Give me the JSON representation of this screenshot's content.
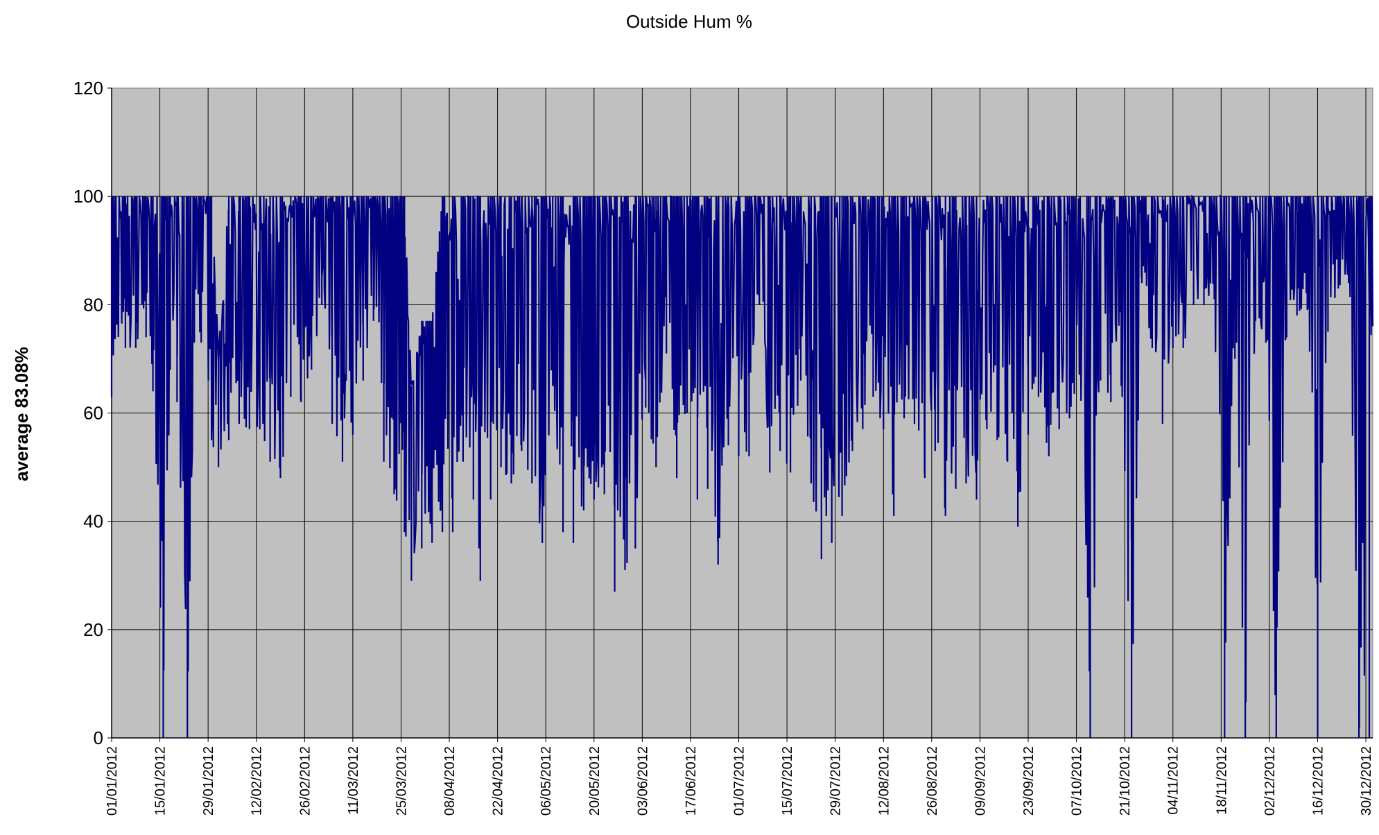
{
  "chart_data": {
    "type": "line",
    "title": "Outside Hum %",
    "xlabel": "",
    "ylabel": "average 83.08%",
    "ylim": [
      0,
      120
    ],
    "yticks": [
      0,
      20,
      40,
      60,
      80,
      100,
      120
    ],
    "x_start": "01/01/2012",
    "x_end": "31/12/2012",
    "x_tick_labels": [
      "01/01/2012",
      "15/01/2012",
      "29/01/2012",
      "12/02/2012",
      "26/02/2012",
      "11/03/2012",
      "25/03/2012",
      "08/04/2012",
      "22/04/2012",
      "06/05/2012",
      "20/05/2012",
      "03/06/2012",
      "17/06/2012",
      "01/07/2012",
      "15/07/2012",
      "29/07/2012",
      "12/08/2012",
      "26/08/2012",
      "09/09/2012",
      "23/09/2012",
      "07/10/2012",
      "21/10/2012",
      "04/11/2012",
      "18/11/2012",
      "02/12/2012",
      "16/12/2012",
      "30/12/2012"
    ],
    "grid": true,
    "legend": "none",
    "colors": {
      "series": "#000080",
      "plot_background": "#c0c0c0",
      "grid": "#000000"
    },
    "series": [
      {
        "x": [
          "01/01/2012",
          "05/01/2012",
          "08/01/2012",
          "11/01/2012",
          "13/01/2012",
          "16/01/2012",
          "18/01/2012",
          "20/01/2012",
          "23/01/2012",
          "25/01/2012",
          "27/01/2012",
          "30/01/2012",
          "01/02/2012",
          "04/02/2012",
          "07/02/2012",
          "10/02/2012",
          "13/02/2012",
          "16/02/2012",
          "19/02/2012",
          "22/02/2012",
          "25/02/2012",
          "28/02/2012",
          "02/03/2012",
          "05/03/2012",
          "08/03/2012",
          "11/03/2012",
          "14/03/2012",
          "17/03/2012",
          "20/03/2012",
          "23/03/2012",
          "26/03/2012",
          "28/03/2012",
          "31/03/2012",
          "03/04/2012",
          "06/04/2012",
          "09/04/2012",
          "12/04/2012",
          "15/04/2012",
          "17/04/2012",
          "20/04/2012",
          "23/04/2012",
          "26/04/2012",
          "29/04/2012",
          "02/05/2012",
          "05/05/2012",
          "08/05/2012",
          "11/05/2012",
          "14/05/2012",
          "17/05/2012",
          "20/05/2012",
          "23/05/2012",
          "26/05/2012",
          "29/05/2012",
          "01/06/2012",
          "04/06/2012",
          "07/06/2012",
          "10/06/2012",
          "13/06/2012",
          "16/06/2012",
          "19/06/2012",
          "22/06/2012",
          "25/06/2012",
          "28/06/2012",
          "01/07/2012",
          "04/07/2012",
          "07/07/2012",
          "10/07/2012",
          "13/07/2012",
          "16/07/2012",
          "19/07/2012",
          "22/07/2012",
          "25/07/2012",
          "28/07/2012",
          "31/07/2012",
          "03/08/2012",
          "06/08/2012",
          "09/08/2012",
          "12/08/2012",
          "15/08/2012",
          "18/08/2012",
          "21/08/2012",
          "24/08/2012",
          "27/08/2012",
          "30/08/2012",
          "02/09/2012",
          "05/09/2012",
          "08/09/2012",
          "11/09/2012",
          "14/09/2012",
          "17/09/2012",
          "20/09/2012",
          "23/09/2012",
          "26/09/2012",
          "29/09/2012",
          "02/10/2012",
          "05/10/2012",
          "08/10/2012",
          "11/10/2012",
          "14/10/2012",
          "17/10/2012",
          "20/10/2012",
          "23/10/2012",
          "26/10/2012",
          "29/10/2012",
          "01/11/2012",
          "04/11/2012",
          "07/11/2012",
          "10/11/2012",
          "13/11/2012",
          "16/11/2012",
          "19/11/2012",
          "22/11/2012",
          "25/11/2012",
          "28/11/2012",
          "01/12/2012",
          "04/12/2012",
          "07/12/2012",
          "10/12/2012",
          "13/12/2012",
          "16/12/2012",
          "19/12/2012",
          "22/12/2012",
          "25/12/2012",
          "28/12/2012",
          "31/12/2012"
        ],
        "min": [
          63,
          72,
          72,
          74,
          64,
          0,
          68,
          62,
          0,
          73,
          73,
          55,
          50,
          55,
          58,
          57,
          57,
          51,
          48,
          63,
          62,
          68,
          80,
          58,
          51,
          56,
          66,
          77,
          51,
          45,
          38,
          29,
          35,
          36,
          38,
          38,
          51,
          44,
          29,
          44,
          50,
          47,
          53,
          47,
          36,
          65,
          38,
          36,
          42,
          44,
          45,
          27,
          31,
          35,
          61,
          50,
          71,
          48,
          60,
          44,
          46,
          32,
          54,
          52,
          52,
          80,
          49,
          53,
          49,
          66,
          47,
          33,
          36,
          41,
          53,
          57,
          63,
          57,
          41,
          59,
          58,
          48,
          53,
          41,
          46,
          47,
          44,
          57,
          55,
          51,
          39,
          56,
          63,
          52,
          57,
          59,
          67,
          0,
          66,
          62,
          65,
          0,
          84,
          72,
          58,
          72,
          72,
          80,
          80,
          81,
          0,
          70,
          0,
          77,
          73,
          0,
          74,
          78,
          79,
          0,
          75,
          83,
          84,
          0,
          0,
          74
        ],
        "max": [
          100,
          100,
          100,
          100,
          100,
          100,
          100,
          100,
          100,
          100,
          100,
          100,
          71,
          100,
          100,
          100,
          100,
          100,
          100,
          100,
          100,
          100,
          100,
          100,
          100,
          100,
          100,
          100,
          100,
          100,
          100,
          65,
          77,
          77,
          100,
          100,
          100,
          100,
          100,
          100,
          100,
          100,
          100,
          100,
          100,
          100,
          100,
          100,
          100,
          100,
          100,
          100,
          100,
          100,
          100,
          100,
          100,
          100,
          100,
          100,
          100,
          100,
          100,
          100,
          100,
          100,
          100,
          100,
          100,
          100,
          100,
          100,
          100,
          100,
          100,
          100,
          100,
          100,
          100,
          100,
          100,
          100,
          100,
          100,
          100,
          100,
          100,
          100,
          100,
          100,
          100,
          100,
          100,
          100,
          100,
          100,
          100,
          100,
          100,
          100,
          100,
          100,
          100,
          100,
          100,
          100,
          100,
          100,
          100,
          100,
          100,
          100,
          100,
          100,
          100,
          100,
          100,
          100,
          100,
          100,
          100,
          100,
          100,
          100,
          100,
          100
        ]
      }
    ]
  }
}
